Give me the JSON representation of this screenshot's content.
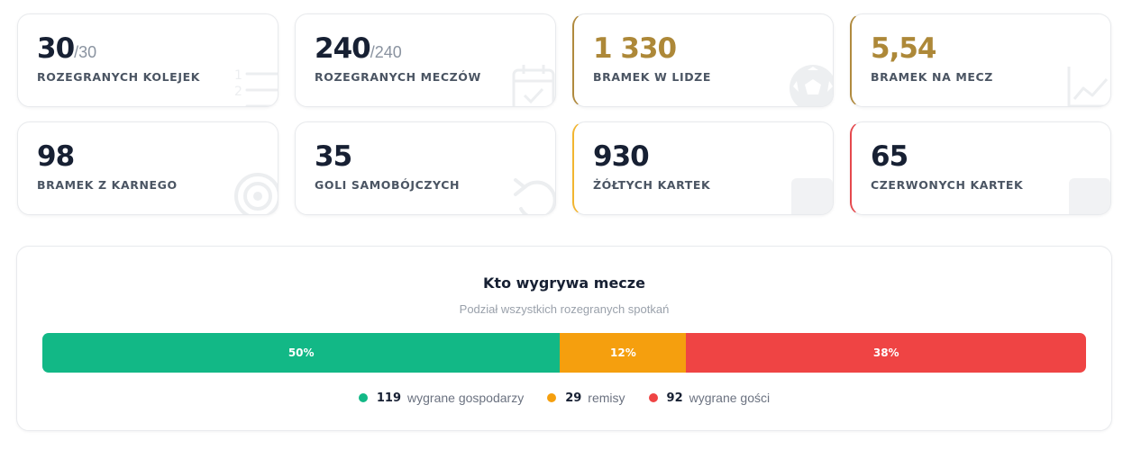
{
  "stats": [
    {
      "value": "30",
      "total": "/30",
      "label": "ROZEGRANYCH KOLEJEK",
      "icon": "list-icon"
    },
    {
      "value": "240",
      "total": "/240",
      "label": "ROZEGRANYCH MECZÓW",
      "icon": "calendar-check-icon"
    },
    {
      "value": "1 330",
      "label": "BRAMEK W LIDZE",
      "icon": "soccer-ball-icon"
    },
    {
      "value": "5,54",
      "label": "BRAMEK NA MECZ",
      "icon": "trend-chart-icon"
    },
    {
      "value": "98",
      "label": "BRAMEK Z KARNEGO",
      "icon": "target-icon"
    },
    {
      "value": "35",
      "label": "GOLI SAMOBÓJCZYCH",
      "icon": "undo-arrow-icon"
    },
    {
      "value": "930",
      "label": "ŻÓŁTYCH KARTEK",
      "icon": "yellow-card-icon"
    },
    {
      "value": "65",
      "label": "CZERWONYCH KARTEK",
      "icon": "red-card-icon"
    }
  ],
  "colors": {
    "gold": "#ad8838",
    "home": "#12b886",
    "draw": "#f59f0e",
    "away": "#ef4444"
  },
  "results": {
    "title": "Kto wygrywa mecze",
    "subtitle": "Podział wszystkich rozegranych spotkań",
    "segments": [
      {
        "key": "home",
        "percent_label": "50%",
        "fraction": 0.496,
        "count": "119",
        "label": "wygrane gospodarzy"
      },
      {
        "key": "draw",
        "percent_label": "12%",
        "fraction": 0.121,
        "count": "29",
        "label": "remisy"
      },
      {
        "key": "away",
        "percent_label": "38%",
        "fraction": 0.383,
        "count": "92",
        "label": "wygrane gości"
      }
    ]
  }
}
